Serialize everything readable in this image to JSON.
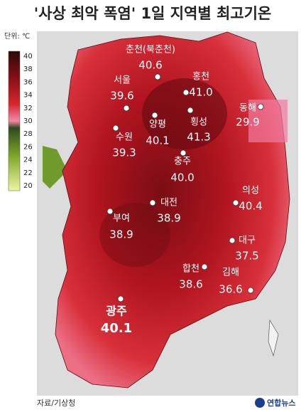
{
  "title": "'사상 최악 폭염' 1일 지역별 최고기온",
  "unit": "단위: ℃",
  "legend_ticks": [
    40,
    38,
    36,
    34,
    32,
    30,
    28,
    26,
    24,
    22,
    20
  ],
  "cities": [
    {
      "name": "춘천(북춘천)",
      "value": "40.6"
    },
    {
      "name": "서울",
      "value": "39.6"
    },
    {
      "name": "홍천",
      "value": "41.0"
    },
    {
      "name": "동해",
      "value": "29.9"
    },
    {
      "name": "양평",
      "value": "40.1"
    },
    {
      "name": "횡성",
      "value": "41.3"
    },
    {
      "name": "수원",
      "value": "39.3"
    },
    {
      "name": "충주",
      "value": "40.0"
    },
    {
      "name": "의성",
      "value": "40.4"
    },
    {
      "name": "대전",
      "value": "38.9"
    },
    {
      "name": "부여",
      "value": "38.9"
    },
    {
      "name": "대구",
      "value": "37.5"
    },
    {
      "name": "합천",
      "value": "38.6"
    },
    {
      "name": "김해",
      "value": "36.6"
    },
    {
      "name": "광주",
      "value": "40.1"
    }
  ],
  "source": "자료/기상청",
  "logo": "연합뉴스"
}
